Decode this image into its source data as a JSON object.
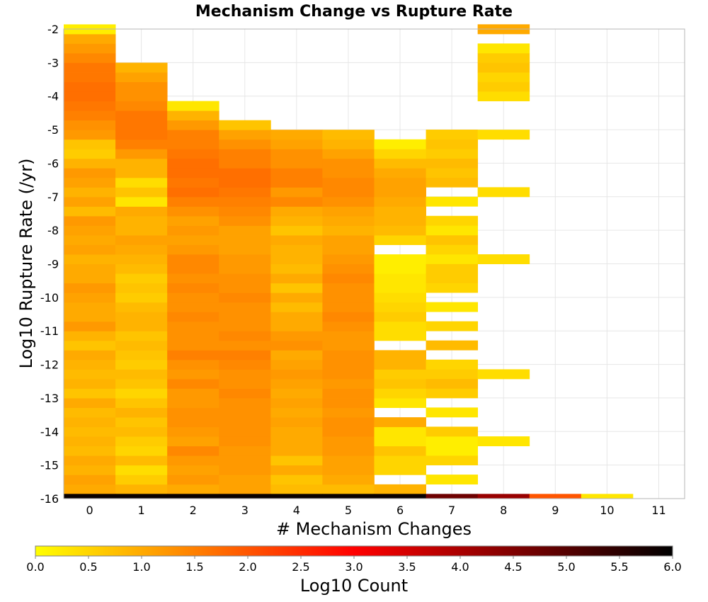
{
  "chart_data": {
    "type": "heatmap",
    "title": "Mechanism Change vs Rupture Rate",
    "xlabel": "# Mechanism Changes",
    "ylabel": "Log10 Rupture Rate (/yr)",
    "x_categories": [
      "0",
      "1",
      "2",
      "3",
      "4",
      "5",
      "6",
      "7",
      "8",
      "9",
      "10",
      "11"
    ],
    "ylim": [
      -16,
      -2
    ],
    "y_ticks": [
      -2,
      -3,
      -4,
      -5,
      -6,
      -7,
      -8,
      -9,
      -10,
      -11,
      -12,
      -13,
      -14,
      -15,
      -16
    ],
    "y_bin_width": 0.2857,
    "colorbar": {
      "label": "Log10 Count",
      "min": 0.0,
      "max": 6.0,
      "ticks": [
        "0.0",
        "0.5",
        "1.0",
        "1.5",
        "2.0",
        "2.5",
        "3.0",
        "3.5",
        "4.0",
        "4.5",
        "5.0",
        "5.5",
        "6.0"
      ],
      "colors": [
        "#ffff00",
        "#ffaa00",
        "#ff5500",
        "#ff0000",
        "#aa0000",
        "#550000",
        "#000000"
      ]
    },
    "bottom_row": {
      "y_range": [
        -16,
        -15.86
      ],
      "values": [
        5.9,
        5.9,
        5.9,
        5.9,
        5.9,
        5.9,
        5.9,
        4.7,
        4.2,
        2.0,
        0.3,
        null
      ]
    },
    "columns": [
      {
        "x": 0,
        "y_start": -15.86,
        "values": [
          1.0,
          1.1,
          0.9,
          1.0,
          0.8,
          0.9,
          0.8,
          0.9,
          0.8,
          1.0,
          0.7,
          0.9,
          0.8,
          0.9,
          1.0,
          0.7,
          0.9,
          1.2,
          1.0,
          1.0,
          1.1,
          1.2,
          1.0,
          1.0,
          0.9,
          1.1,
          1.0,
          1.1,
          1.2,
          0.8,
          1.1,
          0.9,
          1.1,
          1.2,
          0.9,
          0.6,
          0.7,
          1.2,
          1.3,
          1.5,
          1.6,
          1.7,
          1.7,
          1.6,
          1.6,
          1.4,
          1.2,
          1.0,
          0.2
        ]
      },
      {
        "x": 1,
        "y_start": -15.86,
        "values": [
          0.9,
          0.6,
          0.4,
          0.8,
          0.5,
          0.6,
          0.8,
          0.7,
          0.9,
          0.7,
          0.5,
          0.7,
          0.8,
          0.6,
          0.7,
          0.8,
          0.7,
          0.9,
          0.9,
          0.8,
          0.6,
          0.7,
          0.6,
          0.8,
          0.9,
          1.0,
          1.1,
          0.9,
          0.9,
          1.0,
          0.3,
          0.7,
          0.4,
          0.9,
          0.9,
          1.2,
          1.5,
          1.6,
          1.6,
          1.6,
          1.4,
          1.3,
          1.3,
          1.1,
          0.9
        ]
      },
      {
        "x": 2,
        "y_start": -15.86,
        "values": [
          1.0,
          1.2,
          1.1,
          1.2,
          1.4,
          1.1,
          1.2,
          1.3,
          1.3,
          1.2,
          1.2,
          1.4,
          1.2,
          1.3,
          1.5,
          1.3,
          1.3,
          1.3,
          1.4,
          1.3,
          1.3,
          1.4,
          1.3,
          1.4,
          1.4,
          1.2,
          1.1,
          1.2,
          1.1,
          1.3,
          1.5,
          1.7,
          1.6,
          1.7,
          1.7,
          1.6,
          1.5,
          1.5,
          1.2,
          0.9,
          0.3
        ]
      },
      {
        "x": 3,
        "y_start": -15.86,
        "values": [
          1.1,
          1.1,
          1.2,
          1.2,
          1.2,
          1.3,
          1.3,
          1.3,
          1.3,
          1.3,
          1.4,
          1.3,
          1.3,
          1.4,
          1.5,
          1.3,
          1.4,
          1.3,
          1.3,
          1.3,
          1.4,
          1.3,
          1.3,
          1.2,
          1.2,
          1.1,
          1.1,
          1.1,
          1.3,
          1.4,
          1.5,
          1.6,
          1.7,
          1.7,
          1.5,
          1.5,
          1.3,
          1.1,
          0.7
        ]
      },
      {
        "x": 4,
        "y_start": -15.86,
        "values": [
          0.8,
          0.7,
          1.0,
          0.7,
          1.0,
          1.0,
          1.0,
          1.1,
          1.0,
          1.1,
          1.0,
          1.1,
          1.2,
          1.1,
          1.0,
          1.3,
          1.2,
          1.0,
          1.0,
          0.8,
          1.0,
          0.7,
          1.0,
          0.8,
          0.9,
          0.9,
          1.0,
          0.7,
          0.9,
          1.0,
          1.4,
          1.2,
          1.5,
          1.5,
          1.3,
          1.3,
          1.1,
          1.0
        ]
      },
      {
        "x": 5,
        "y_start": -15.86,
        "values": [
          0.8,
          1.0,
          1.1,
          1.1,
          1.2,
          1.2,
          1.3,
          1.3,
          1.2,
          1.3,
          1.3,
          1.2,
          1.3,
          1.3,
          1.3,
          1.2,
          1.2,
          1.3,
          1.4,
          1.3,
          1.3,
          1.3,
          1.4,
          1.3,
          1.2,
          1.1,
          1.1,
          0.9,
          1.0,
          1.1,
          1.3,
          1.4,
          1.4,
          1.3,
          1.3,
          1.1,
          0.9,
          0.8
        ]
      },
      {
        "x": 6,
        "y_start": -15.86,
        "values": [
          0.9,
          null,
          0.5,
          0.5,
          0.7,
          0.3,
          0.3,
          1.0,
          null,
          0.3,
          0.5,
          0.7,
          0.6,
          0.9,
          0.9,
          null,
          0.4,
          0.4,
          0.6,
          0.5,
          0.4,
          0.3,
          0.3,
          0.2,
          0.2,
          null,
          0.5,
          0.8,
          0.9,
          0.9,
          1.0,
          1.1,
          1.1,
          1.0,
          0.8,
          0.5,
          0.2
        ]
      },
      {
        "x": 7,
        "y_start": -15.57,
        "values": [
          0.3,
          null,
          0.5,
          0.2,
          0.2,
          0.6,
          null,
          0.3,
          null,
          0.6,
          0.8,
          0.6,
          0.5,
          null,
          0.8,
          null,
          0.5,
          null,
          0.3,
          null,
          0.5,
          0.6,
          0.6,
          0.3,
          0.5,
          0.7,
          0.3,
          0.5,
          null,
          0.3,
          null,
          0.8,
          0.7,
          0.8,
          0.6,
          0.7,
          0.6
        ]
      },
      {
        "x": 8,
        "y_start": -14.43,
        "values": [
          0.3,
          null,
          null,
          null,
          null,
          null,
          null,
          0.4,
          null,
          null,
          null,
          null,
          null,
          null,
          null,
          null,
          null,
          null,
          null,
          0.4,
          null,
          null,
          null,
          null,
          null,
          null,
          0.4,
          null,
          null,
          null,
          null,
          null,
          0.4,
          null,
          null,
          null,
          0.4,
          0.6,
          0.5,
          0.7,
          0.6,
          0.3,
          null,
          1.0
        ]
      }
    ]
  }
}
